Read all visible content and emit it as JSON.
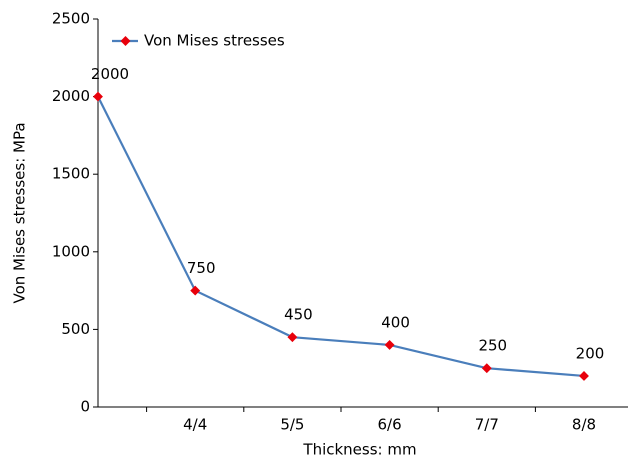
{
  "chart_data": {
    "type": "line",
    "x_label": "Thickness: mm",
    "y_label": "Von Mises stresses: MPa",
    "categories": [
      null,
      "4/4",
      "5/5",
      "6/6",
      "7/7",
      "8/8"
    ],
    "series": [
      {
        "name": "Von Mises stresses",
        "color": "#4a7ebb",
        "marker_color": "#e8000b",
        "values": [
          2000,
          750,
          450,
          400,
          250,
          200
        ]
      }
    ],
    "ylim": [
      0,
      2500
    ],
    "yticks": [
      0,
      500,
      1000,
      1500,
      2000,
      2500
    ],
    "legend": "upper-left",
    "grid": false
  }
}
